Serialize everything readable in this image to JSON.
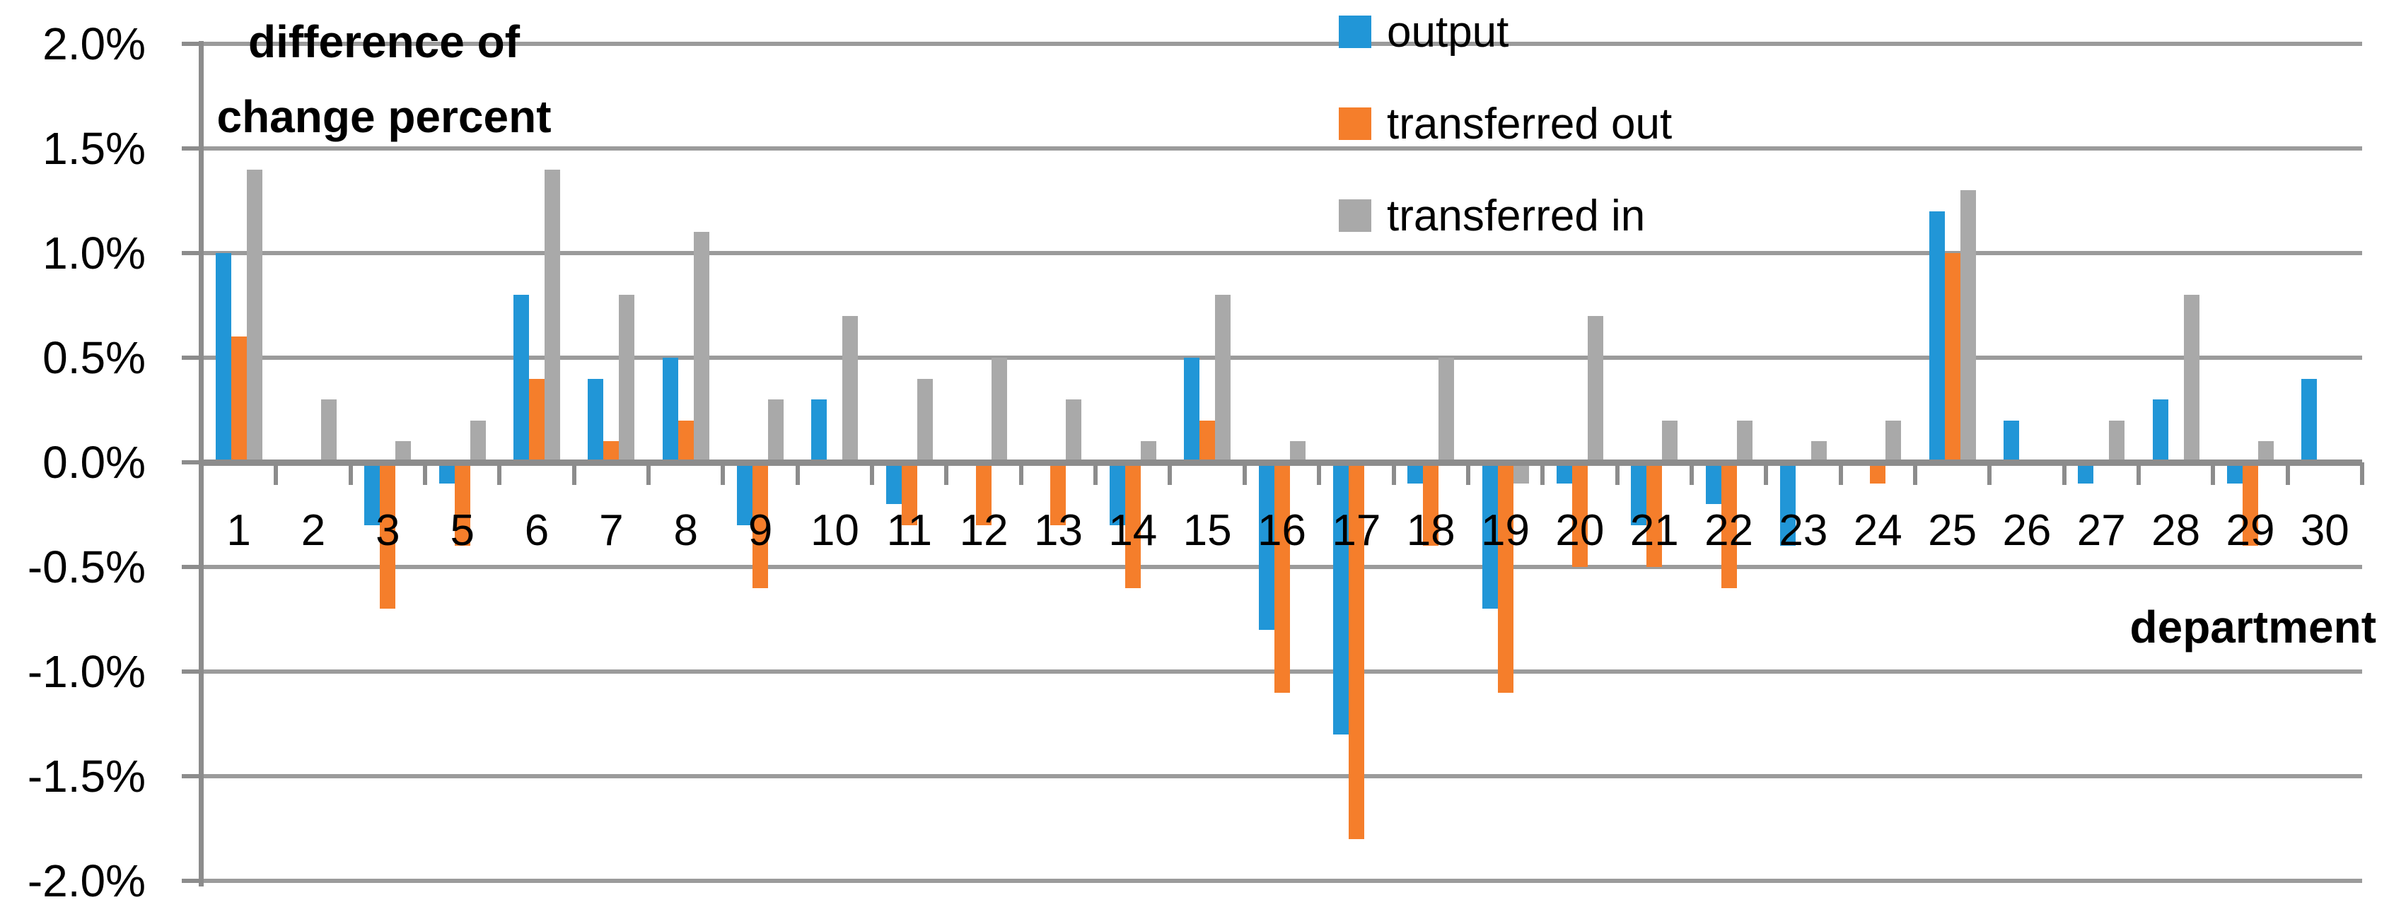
{
  "title": {
    "line1": "difference of",
    "line2": "change percent"
  },
  "x_axis_title": "department",
  "legend": [
    {
      "label": "output",
      "color": "#2196D7"
    },
    {
      "label": "transferred out",
      "color": "#F57E2B"
    },
    {
      "label": "transferred in",
      "color": "#A9A9A9"
    }
  ],
  "colors": {
    "gridline": "#9B9B9B",
    "axis": "#8C8C8C",
    "text": "#000000",
    "background": "#FFFFFF"
  },
  "chart_data": {
    "type": "bar",
    "title": "difference of change percent",
    "xlabel": "department",
    "ylabel": "",
    "ylim": [
      -2.0,
      2.0
    ],
    "grid": true,
    "legend_position": "top-center",
    "y_ticks": [
      "2.0%",
      "1.5%",
      "1.0%",
      "0.5%",
      "0.0%",
      "-0.5%",
      "-1.0%",
      "-1.5%",
      "-2.0%"
    ],
    "y_tick_values": [
      2.0,
      1.5,
      1.0,
      0.5,
      0.0,
      -0.5,
      -1.0,
      -1.5,
      -2.0
    ],
    "categories": [
      "1",
      "2",
      "3",
      "5",
      "6",
      "7",
      "8",
      "9",
      "10",
      "11",
      "12",
      "13",
      "14",
      "15",
      "16",
      "17",
      "18",
      "19",
      "20",
      "21",
      "22",
      "23",
      "24",
      "25",
      "26",
      "27",
      "28",
      "29",
      "30"
    ],
    "series": [
      {
        "name": "output",
        "color": "#2196D7",
        "values": [
          1.0,
          0,
          -0.3,
          -0.1,
          0.8,
          0.4,
          0.5,
          -0.3,
          0.3,
          -0.2,
          0,
          0,
          -0.3,
          0.5,
          -0.8,
          -1.3,
          -0.1,
          -0.7,
          -0.1,
          -0.3,
          -0.2,
          -0.4,
          0,
          1.2,
          0.2,
          -0.1,
          0.3,
          -0.1,
          0.4
        ]
      },
      {
        "name": "transferred out",
        "color": "#F57E2B",
        "values": [
          0.6,
          0,
          -0.7,
          -0.4,
          0.4,
          0.1,
          0.2,
          -0.6,
          0,
          -0.3,
          -0.3,
          -0.3,
          -0.6,
          0.2,
          -1.1,
          -1.8,
          -0.4,
          -1.1,
          -0.5,
          -0.5,
          -0.6,
          0,
          -0.1,
          1.0,
          0,
          0,
          0,
          -0.4,
          0
        ]
      },
      {
        "name": "transferred in",
        "color": "#A9A9A9",
        "values": [
          1.4,
          0.3,
          0.1,
          0.2,
          1.4,
          0.8,
          1.1,
          0.3,
          0.7,
          0.4,
          0.5,
          0.3,
          0.1,
          0.8,
          0.1,
          0,
          0.5,
          -0.1,
          0.7,
          0.2,
          0.2,
          0.1,
          0.2,
          1.3,
          0,
          0.2,
          0.8,
          0.1,
          0
        ]
      }
    ]
  }
}
